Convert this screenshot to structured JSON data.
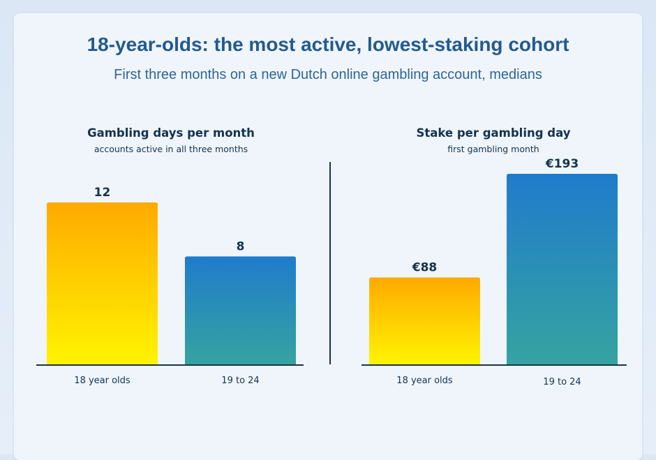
{
  "title": "18-year-olds: the most active, lowest-staking cohort",
  "subtitle": "First three months on a new Dutch online gambling account, medians",
  "colors": {
    "background": "#eff5fb",
    "text": "#16324f",
    "title": "#235a8e",
    "gold_top": "#ffaa00",
    "gold_bottom": "#fff400",
    "blue_top": "#1f7ccc",
    "blue_bottom": "#36a3a0",
    "axis": "#16324f"
  },
  "chart_data": [
    {
      "type": "bar",
      "title": "Gambling days per month",
      "subtitle": "accounts active in all three months",
      "categories": [
        "18 year olds",
        "19 to 24"
      ],
      "values": [
        12,
        8
      ],
      "value_labels": [
        "12",
        "8"
      ],
      "bar_colors": [
        "gold",
        "blue"
      ],
      "ylim": [
        0,
        15
      ],
      "grid": false
    },
    {
      "type": "bar",
      "title": "Stake per gambling day",
      "subtitle": "first gambling month",
      "categories": [
        "18 year olds",
        "19 to 24"
      ],
      "values": [
        88,
        193
      ],
      "value_labels": [
        "€88",
        "€193"
      ],
      "bar_colors": [
        "gold",
        "blue"
      ],
      "ylim": [
        0,
        205
      ],
      "grid": false
    }
  ]
}
